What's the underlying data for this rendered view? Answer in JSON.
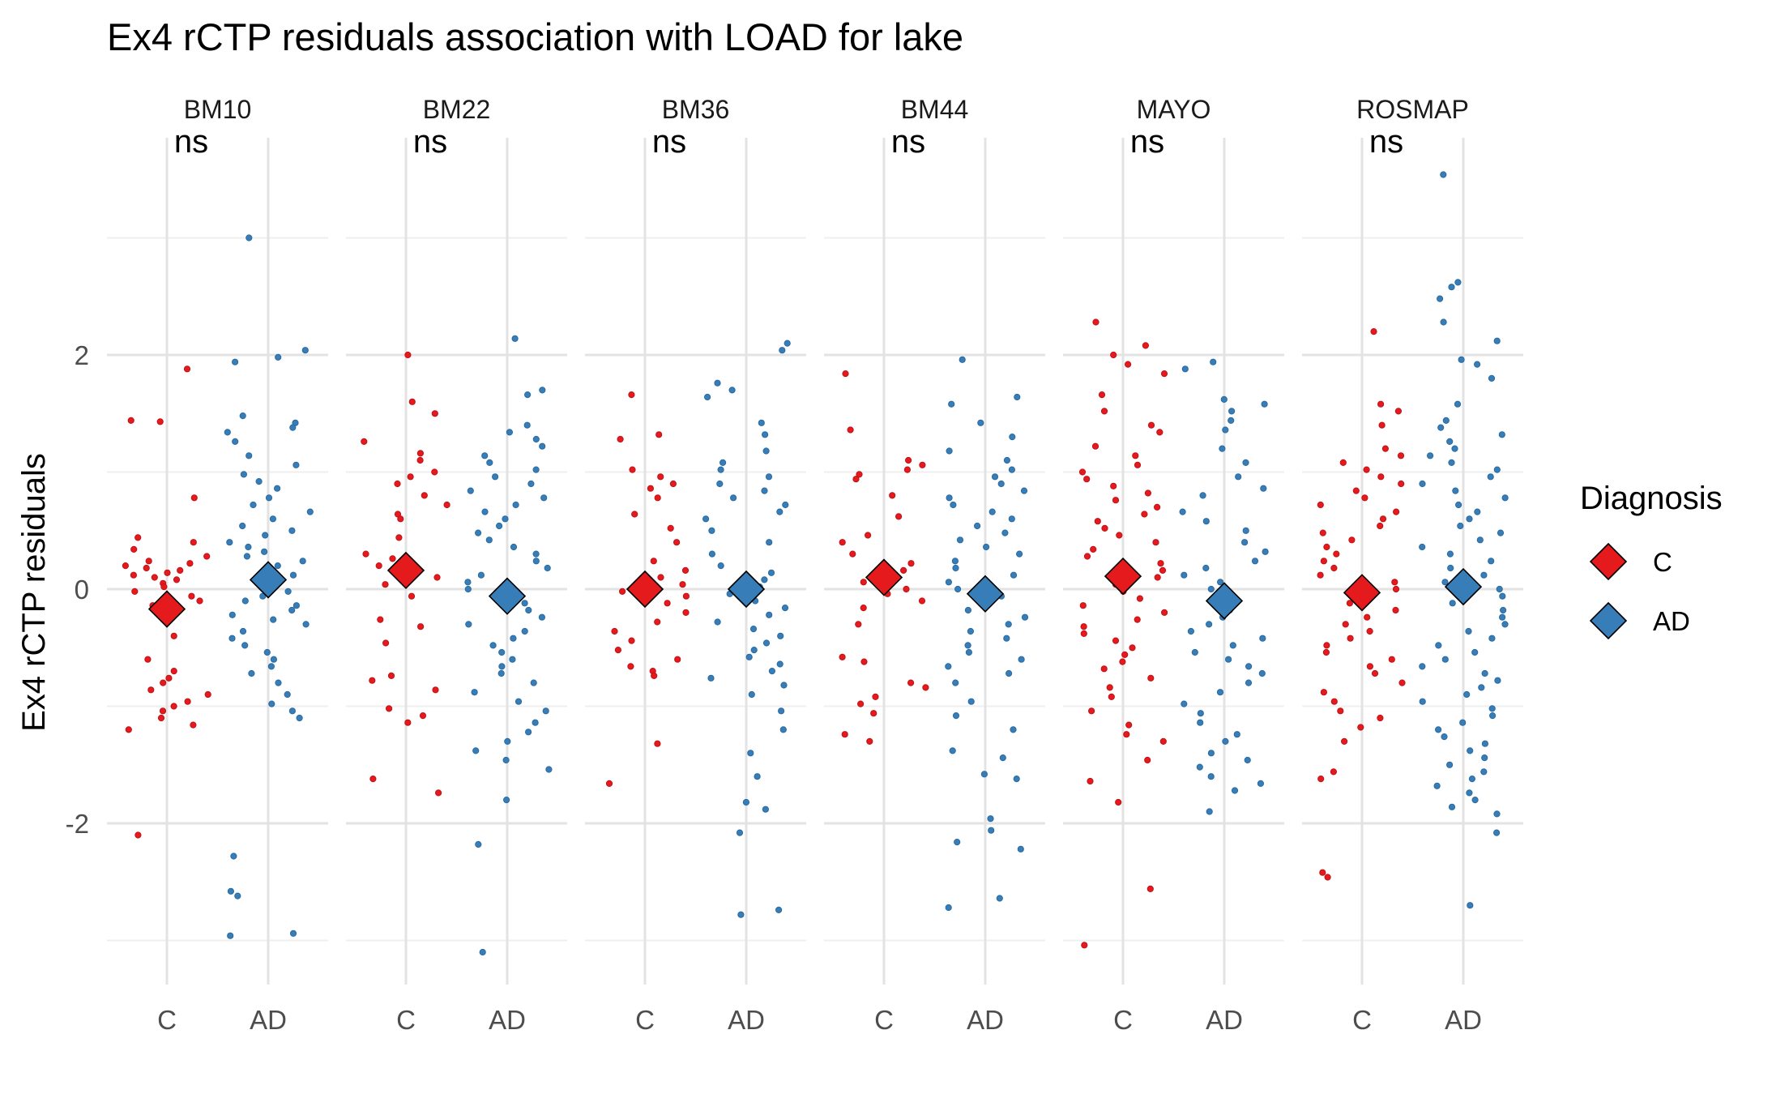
{
  "chart_data": {
    "type": "scatter",
    "title": "Ex4 rCTP residuals association with LOAD for lake",
    "ylabel": "Ex4 rCTP residuals",
    "xlabel": "",
    "categories": [
      "C",
      "AD"
    ],
    "y_ticks": [
      "-2",
      "0",
      "2"
    ],
    "ylim": [
      -3.45,
      3.85
    ],
    "grid": true,
    "legend": {
      "title": "Diagnosis",
      "placement": "right",
      "entries": [
        {
          "label": "C",
          "color": "#e41a1c"
        },
        {
          "label": "AD",
          "color": "#377eb8"
        }
      ]
    },
    "significance_label": "ns",
    "panels": [
      {
        "name": "BM10",
        "label": "ns",
        "mean": {
          "C": -0.17,
          "AD": 0.08
        },
        "points": {
          "C": [
            1.88,
            1.44,
            1.43,
            0.78,
            0.44,
            0.4,
            0.34,
            0.28,
            0.24,
            0.22,
            0.2,
            0.18,
            0.16,
            0.14,
            0.12,
            0.1,
            0.08,
            0.05,
            0.02,
            -0.02,
            -0.06,
            -0.1,
            -0.14,
            -0.22,
            -0.4,
            -0.6,
            -0.7,
            -0.76,
            -0.8,
            -0.86,
            -0.9,
            -0.96,
            -1.0,
            -1.04,
            -1.1,
            -1.16,
            -1.2,
            -2.1
          ],
          "AD": [
            3.0,
            2.04,
            1.98,
            1.94,
            1.48,
            1.42,
            1.38,
            1.34,
            1.26,
            1.14,
            1.06,
            0.98,
            0.92,
            0.86,
            0.78,
            0.72,
            0.66,
            0.6,
            0.54,
            0.5,
            0.46,
            0.4,
            0.36,
            0.32,
            0.28,
            0.24,
            0.2,
            0.16,
            0.12,
            0.06,
            0.02,
            -0.02,
            -0.06,
            -0.1,
            -0.14,
            -0.18,
            -0.22,
            -0.26,
            -0.3,
            -0.36,
            -0.42,
            -0.48,
            -0.54,
            -0.6,
            -0.66,
            -0.72,
            -0.8,
            -0.9,
            -0.98,
            -1.04,
            -1.1,
            -2.28,
            -2.58,
            -2.62,
            -2.94,
            -2.96
          ]
        }
      },
      {
        "name": "BM22",
        "label": "ns",
        "mean": {
          "C": 0.16,
          "AD": -0.06
        },
        "points": {
          "C": [
            2.0,
            1.6,
            1.5,
            1.26,
            1.16,
            1.1,
            1.0,
            0.96,
            0.9,
            0.8,
            0.72,
            0.64,
            0.6,
            0.44,
            0.3,
            0.26,
            0.2,
            0.14,
            0.1,
            0.04,
            -0.06,
            -0.26,
            -0.32,
            -0.46,
            -0.74,
            -0.78,
            -0.86,
            -1.02,
            -1.08,
            -1.14,
            -1.62,
            -1.74
          ],
          "AD": [
            2.14,
            1.7,
            1.66,
            1.4,
            1.34,
            1.28,
            1.22,
            1.14,
            1.08,
            1.02,
            0.96,
            0.9,
            0.84,
            0.78,
            0.72,
            0.66,
            0.6,
            0.54,
            0.48,
            0.42,
            0.36,
            0.3,
            0.24,
            0.18,
            0.12,
            0.06,
            0.0,
            -0.06,
            -0.12,
            -0.18,
            -0.24,
            -0.3,
            -0.36,
            -0.42,
            -0.48,
            -0.54,
            -0.6,
            -0.66,
            -0.72,
            -0.8,
            -0.88,
            -0.96,
            -1.04,
            -1.14,
            -1.22,
            -1.3,
            -1.38,
            -1.46,
            -1.54,
            -1.8,
            -2.18,
            -3.1
          ]
        }
      },
      {
        "name": "BM36",
        "label": "ns",
        "mean": {
          "C": 0.0,
          "AD": 0.0
        },
        "points": {
          "C": [
            1.66,
            1.32,
            1.28,
            1.02,
            0.96,
            0.9,
            0.86,
            0.78,
            0.64,
            0.52,
            0.4,
            0.24,
            0.16,
            0.1,
            0.04,
            -0.02,
            -0.06,
            -0.12,
            -0.2,
            -0.28,
            -0.36,
            -0.44,
            -0.52,
            -0.6,
            -0.66,
            -0.7,
            -0.74,
            -1.32,
            -1.66
          ],
          "AD": [
            2.1,
            2.04,
            1.76,
            1.7,
            1.64,
            1.42,
            1.32,
            1.18,
            1.08,
            1.02,
            0.96,
            0.9,
            0.84,
            0.78,
            0.72,
            0.66,
            0.6,
            0.5,
            0.4,
            0.3,
            0.2,
            0.14,
            0.08,
            0.02,
            -0.04,
            -0.1,
            -0.16,
            -0.22,
            -0.28,
            -0.34,
            -0.4,
            -0.46,
            -0.52,
            -0.58,
            -0.64,
            -0.7,
            -0.76,
            -0.82,
            -0.9,
            -1.04,
            -1.2,
            -1.4,
            -1.6,
            -1.82,
            -1.88,
            -2.08,
            -2.74,
            -2.78
          ]
        }
      },
      {
        "name": "BM44",
        "label": "ns",
        "mean": {
          "C": 0.1,
          "AD": -0.04
        },
        "points": {
          "C": [
            1.84,
            1.36,
            1.1,
            1.06,
            1.02,
            0.98,
            0.94,
            0.8,
            0.62,
            0.46,
            0.4,
            0.3,
            0.22,
            0.16,
            0.1,
            0.06,
            0.0,
            -0.04,
            -0.1,
            -0.16,
            -0.3,
            -0.58,
            -0.62,
            -0.8,
            -0.84,
            -0.92,
            -0.98,
            -1.06,
            -1.24,
            -1.3
          ],
          "AD": [
            1.96,
            1.64,
            1.58,
            1.42,
            1.3,
            1.18,
            1.1,
            1.02,
            0.96,
            0.9,
            0.84,
            0.78,
            0.72,
            0.66,
            0.6,
            0.54,
            0.48,
            0.42,
            0.36,
            0.3,
            0.24,
            0.18,
            0.12,
            0.06,
            0.0,
            -0.06,
            -0.12,
            -0.18,
            -0.24,
            -0.3,
            -0.36,
            -0.42,
            -0.48,
            -0.54,
            -0.6,
            -0.66,
            -0.72,
            -0.8,
            -0.96,
            -1.08,
            -1.2,
            -1.38,
            -1.44,
            -1.58,
            -1.62,
            -1.96,
            -2.06,
            -2.16,
            -2.22,
            -2.64,
            -2.72
          ]
        }
      },
      {
        "name": "MAYO",
        "label": "ns",
        "mean": {
          "C": 0.11,
          "AD": -0.1
        },
        "points": {
          "C": [
            2.28,
            2.08,
            2.0,
            1.92,
            1.84,
            1.66,
            1.52,
            1.4,
            1.34,
            1.22,
            1.14,
            1.06,
            1.0,
            0.94,
            0.88,
            0.82,
            0.76,
            0.7,
            0.64,
            0.58,
            0.52,
            0.46,
            0.4,
            0.34,
            0.28,
            0.22,
            0.16,
            0.1,
            0.04,
            -0.02,
            -0.08,
            -0.14,
            -0.2,
            -0.26,
            -0.32,
            -0.38,
            -0.44,
            -0.5,
            -0.56,
            -0.62,
            -0.68,
            -0.76,
            -0.84,
            -0.92,
            -1.04,
            -1.16,
            -1.24,
            -1.3,
            -1.46,
            -1.64,
            -1.82,
            -2.56,
            -3.04
          ],
          "AD": [
            1.94,
            1.88,
            1.62,
            1.58,
            1.52,
            1.44,
            1.36,
            1.2,
            1.08,
            0.96,
            0.86,
            0.8,
            0.66,
            0.58,
            0.5,
            0.4,
            0.32,
            0.24,
            0.18,
            0.12,
            0.06,
            0.0,
            -0.06,
            -0.12,
            -0.18,
            -0.24,
            -0.3,
            -0.36,
            -0.42,
            -0.48,
            -0.54,
            -0.6,
            -0.66,
            -0.72,
            -0.8,
            -0.88,
            -0.98,
            -1.06,
            -1.14,
            -1.24,
            -1.3,
            -1.4,
            -1.46,
            -1.52,
            -1.6,
            -1.66,
            -1.72,
            -1.9
          ]
        }
      },
      {
        "name": "ROSMAP",
        "label": "ns",
        "mean": {
          "C": -0.03,
          "AD": 0.02
        },
        "points": {
          "C": [
            2.2,
            1.58,
            1.52,
            1.4,
            1.2,
            1.14,
            1.08,
            1.02,
            0.96,
            0.9,
            0.84,
            0.78,
            0.72,
            0.66,
            0.6,
            0.54,
            0.48,
            0.42,
            0.36,
            0.3,
            0.24,
            0.18,
            0.12,
            0.06,
            0.0,
            -0.06,
            -0.12,
            -0.18,
            -0.24,
            -0.3,
            -0.36,
            -0.42,
            -0.48,
            -0.54,
            -0.6,
            -0.66,
            -0.72,
            -0.8,
            -0.88,
            -0.96,
            -1.04,
            -1.1,
            -1.18,
            -1.3,
            -1.56,
            -1.62,
            -2.42,
            -2.46
          ],
          "AD": [
            3.54,
            2.62,
            2.58,
            2.48,
            2.28,
            2.12,
            1.96,
            1.92,
            1.8,
            1.58,
            1.44,
            1.38,
            1.32,
            1.26,
            1.2,
            1.14,
            1.08,
            1.02,
            0.96,
            0.9,
            0.84,
            0.78,
            0.72,
            0.66,
            0.6,
            0.54,
            0.48,
            0.42,
            0.36,
            0.3,
            0.24,
            0.18,
            0.12,
            0.06,
            0.0,
            -0.06,
            -0.12,
            -0.18,
            -0.24,
            -0.3,
            -0.36,
            -0.42,
            -0.48,
            -0.54,
            -0.6,
            -0.66,
            -0.72,
            -0.78,
            -0.84,
            -0.9,
            -0.96,
            -1.02,
            -1.08,
            -1.14,
            -1.2,
            -1.26,
            -1.32,
            -1.38,
            -1.44,
            -1.5,
            -1.56,
            -1.62,
            -1.68,
            -1.74,
            -1.8,
            -1.86,
            -1.92,
            -2.08,
            -2.7
          ]
        }
      }
    ]
  }
}
